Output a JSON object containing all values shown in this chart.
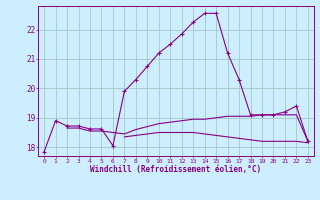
{
  "xlabel": "Windchill (Refroidissement éolien,°C)",
  "background_color": "#cceeff",
  "grid_color": "#aacccc",
  "line_color": "#880088",
  "x_values": [
    0,
    1,
    2,
    3,
    4,
    5,
    6,
    7,
    8,
    9,
    10,
    11,
    12,
    13,
    14,
    15,
    16,
    17,
    18,
    19,
    20,
    21,
    22,
    23
  ],
  "line1_y": [
    17.85,
    18.9,
    18.72,
    18.72,
    18.62,
    18.62,
    18.05,
    19.9,
    20.3,
    20.75,
    21.2,
    21.5,
    21.85,
    22.25,
    22.55,
    22.55,
    21.2,
    20.3,
    19.1,
    19.1,
    19.1,
    19.2,
    19.4,
    18.2
  ],
  "line2_y": [
    null,
    null,
    18.65,
    18.65,
    18.55,
    18.55,
    null,
    18.45,
    18.6,
    18.7,
    18.8,
    18.85,
    18.9,
    18.95,
    18.95,
    19.0,
    19.05,
    19.05,
    19.05,
    19.1,
    19.1,
    19.1,
    19.1,
    18.2
  ],
  "line3_y": [
    null,
    null,
    null,
    null,
    null,
    null,
    null,
    18.35,
    18.4,
    18.45,
    18.5,
    18.5,
    18.5,
    18.5,
    18.45,
    18.4,
    18.35,
    18.3,
    18.25,
    18.2,
    18.2,
    18.2,
    18.2,
    18.15
  ],
  "xlim": [
    -0.5,
    23.5
  ],
  "ylim": [
    17.7,
    22.8
  ],
  "yticks": [
    18,
    19,
    20,
    21,
    22
  ],
  "xticks": [
    0,
    1,
    2,
    3,
    4,
    5,
    6,
    7,
    8,
    9,
    10,
    11,
    12,
    13,
    14,
    15,
    16,
    17,
    18,
    19,
    20,
    21,
    22,
    23
  ]
}
